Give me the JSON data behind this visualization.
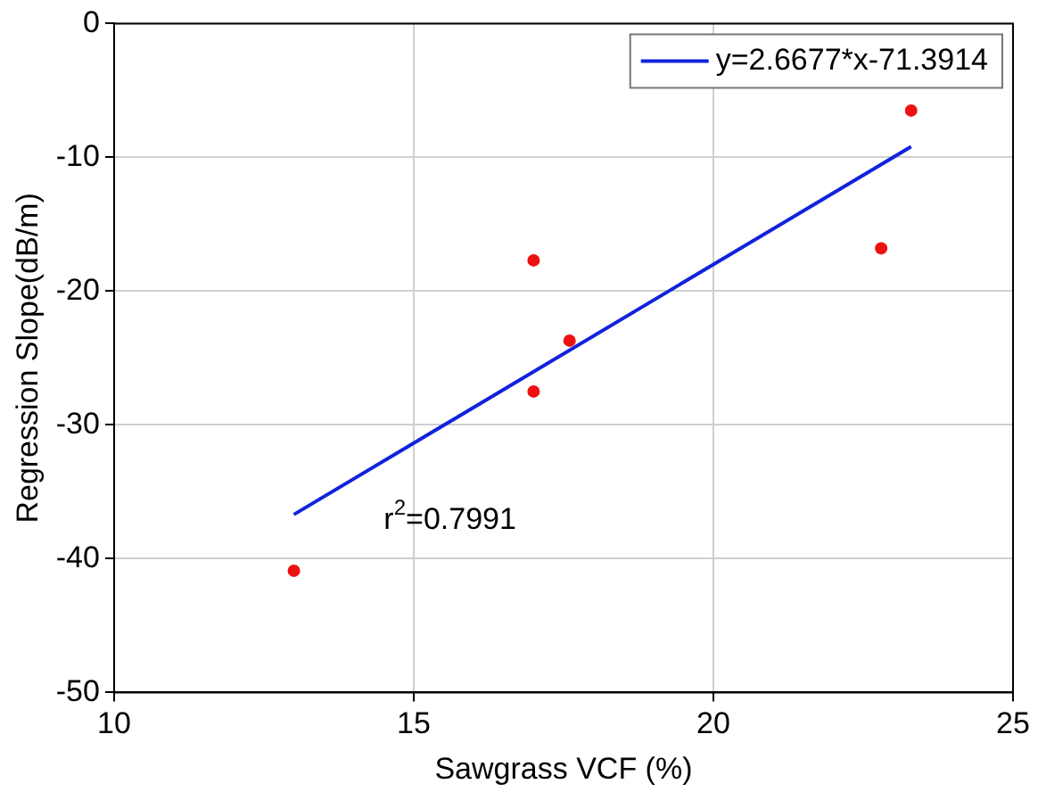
{
  "chart_data": {
    "type": "scatter",
    "xlabel": "Sawgrass VCF (%)",
    "ylabel": "Regression Slope(dB/m)",
    "xlim": [
      10,
      25
    ],
    "xticks": [
      10,
      15,
      20,
      25
    ],
    "ylim": [
      -50,
      0
    ],
    "yticks": [
      -50,
      -40,
      -30,
      -20,
      -10,
      0
    ],
    "grid": true,
    "legend": "top right",
    "marker": "circle",
    "series": [
      {
        "color": "#ee1111",
        "x": [
          13.0,
          17.0,
          17.0,
          17.6,
          22.8,
          23.3
        ],
        "values": [
          -40.9,
          -17.7,
          -27.5,
          -23.7,
          -16.8,
          -6.5
        ]
      },
      {
        "type": "line",
        "name": "y=2.6677*x-71.3914",
        "color": "#1122dd",
        "marker": "none",
        "line_style": "solid",
        "x": [
          13.0,
          23.3
        ],
        "values": [
          -36.7,
          -9.2
        ]
      }
    ],
    "annotations": [
      "r$^{2}$=0.7991"
    ]
  }
}
